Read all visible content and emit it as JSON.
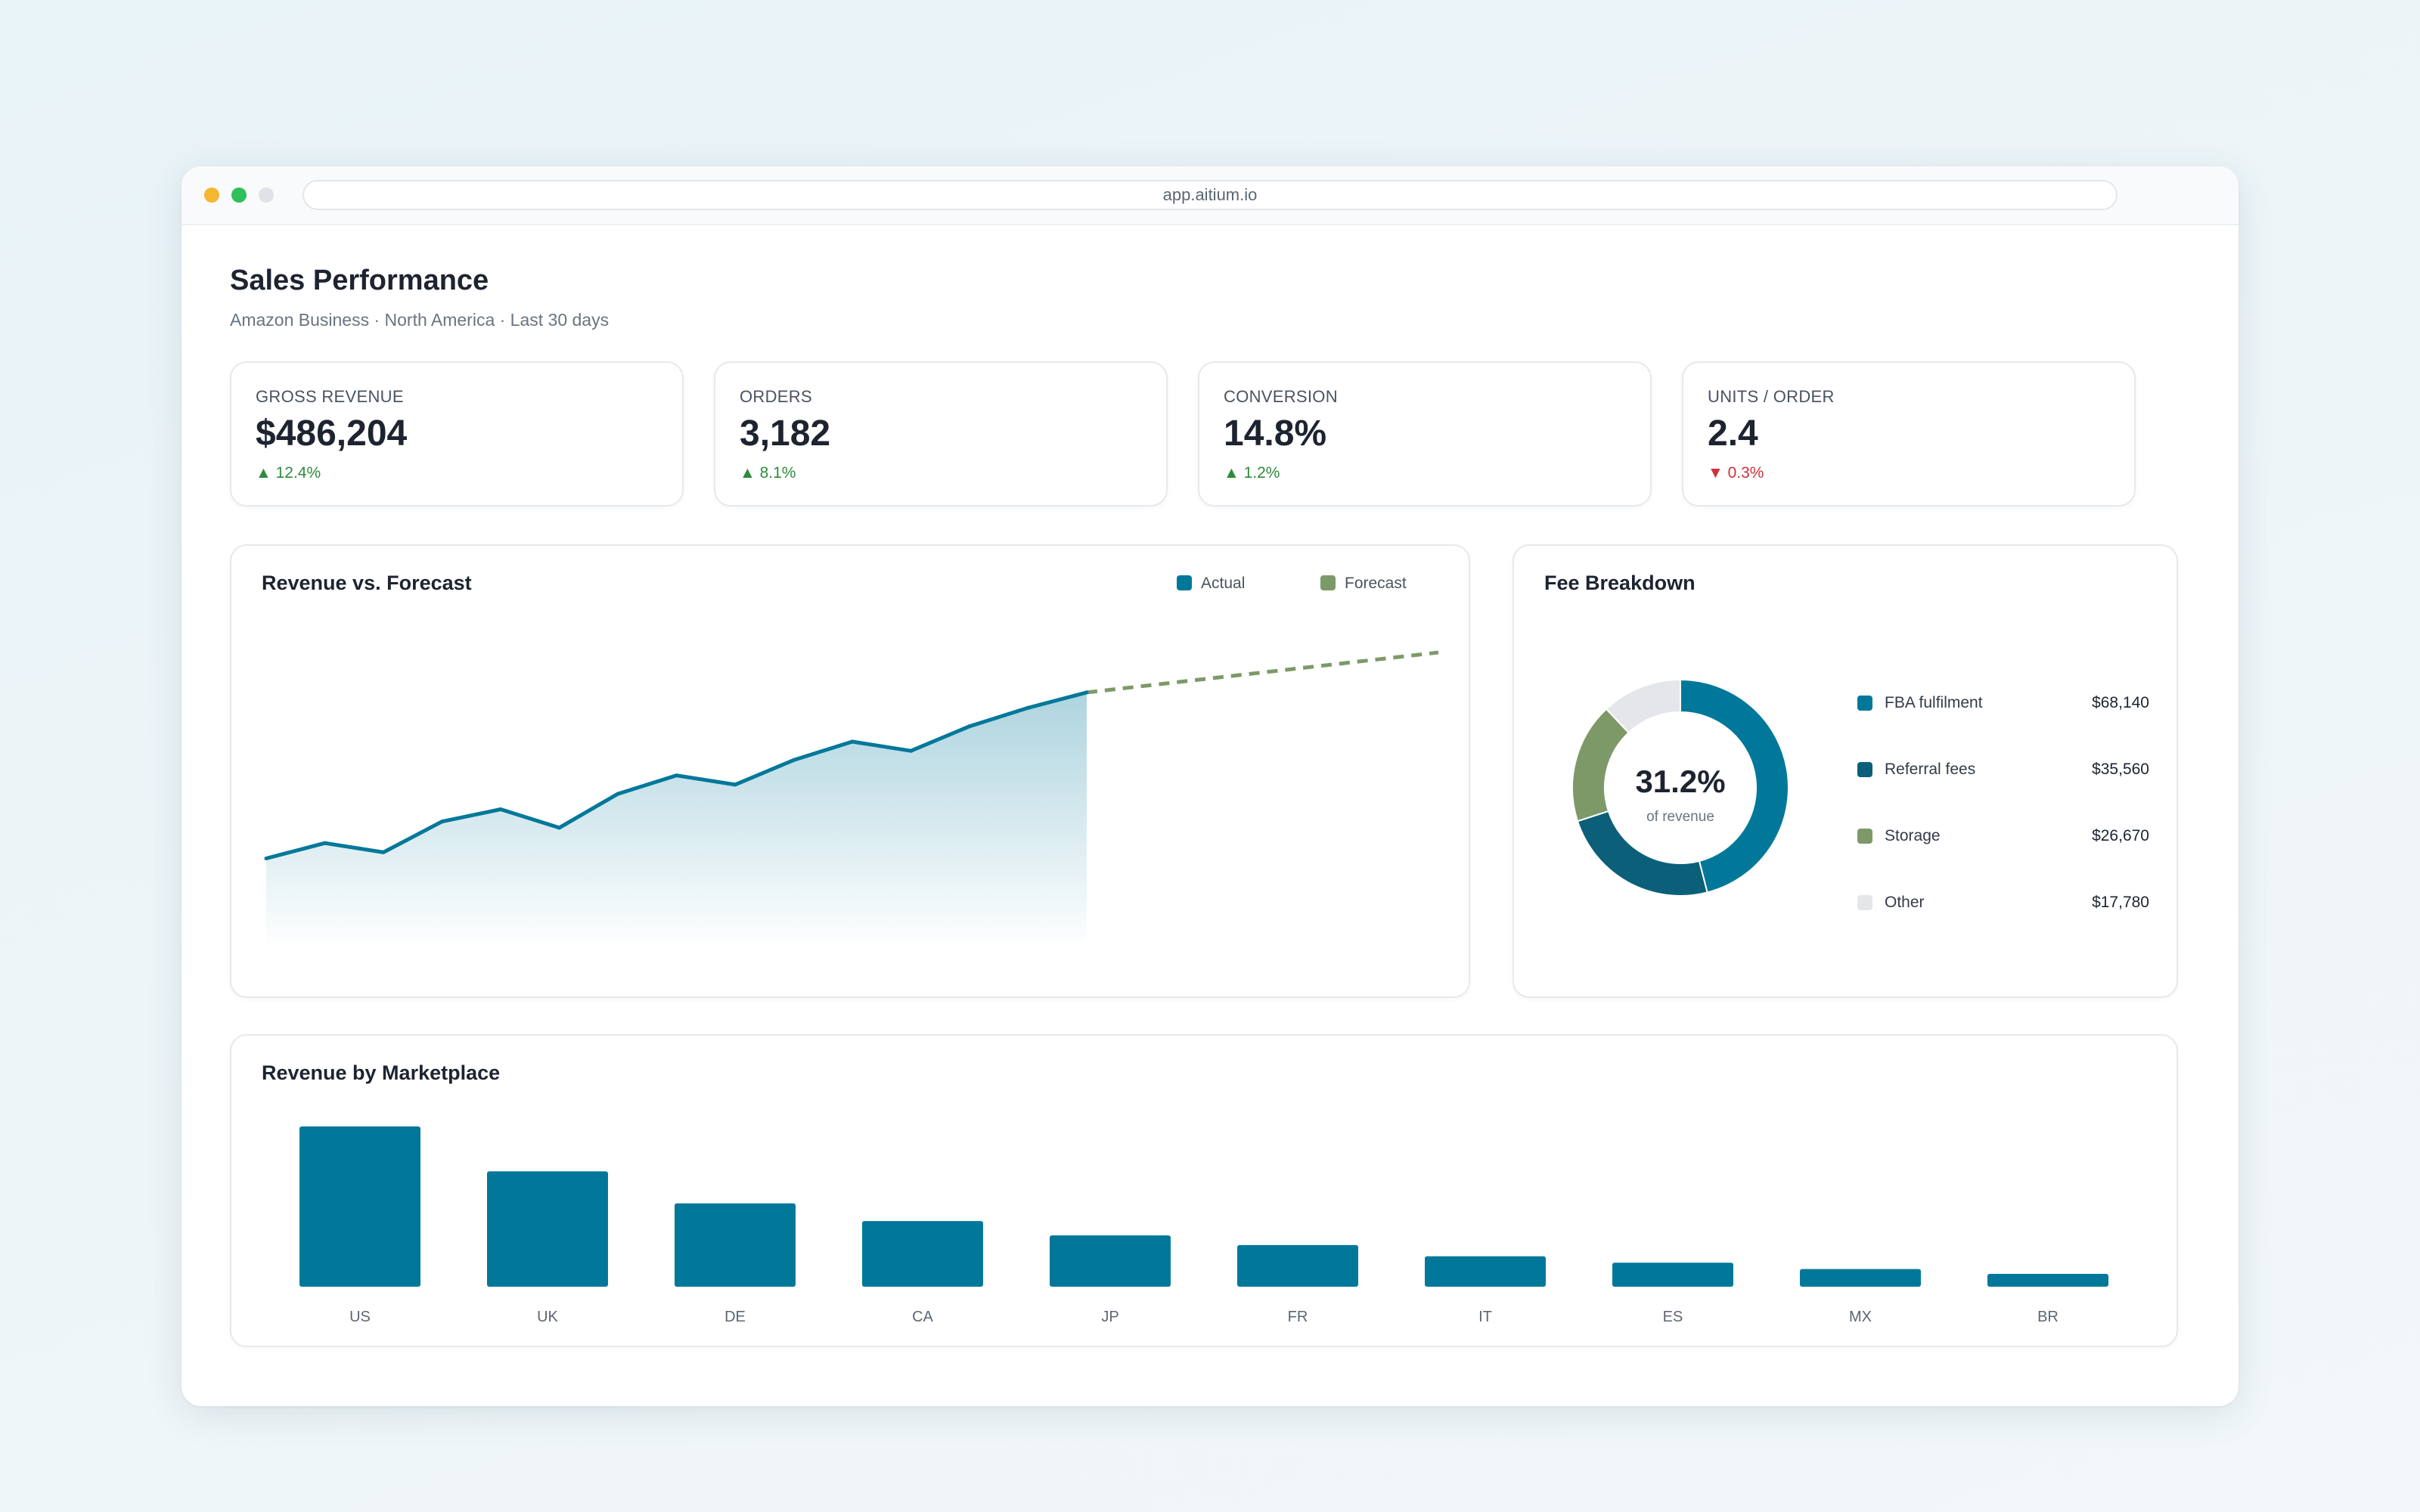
{
  "browser": {
    "url": "app.aitium.io"
  },
  "header": {
    "title": "Sales Performance",
    "subtitle": "Amazon Business · North America · Last 30 days"
  },
  "kpis": [
    {
      "label": "GROSS REVENUE",
      "value": "$486,204",
      "delta": "▲ 12.4%",
      "trend": "up"
    },
    {
      "label": "ORDERS",
      "value": "3,182",
      "delta": "▲ 8.1%",
      "trend": "up"
    },
    {
      "label": "CONVERSION",
      "value": "14.8%",
      "delta": "▲ 1.2%",
      "trend": "up"
    },
    {
      "label": "UNITS / ORDER",
      "value": "2.4",
      "delta": "▼ 0.3%",
      "trend": "down"
    }
  ],
  "colors": {
    "actual": "#01789a",
    "actual_dark": "#0b5f79",
    "forecast": "#7e9968",
    "other": "#e4e6e9",
    "up": "#2e8b3d",
    "down": "#d0313a"
  },
  "revenue_chart": {
    "title": "Revenue vs. Forecast",
    "legend": {
      "actual": "Actual",
      "forecast": "Forecast"
    }
  },
  "fee_breakdown": {
    "title": "Fee Breakdown",
    "center_value": "31.2%",
    "center_label": "of revenue",
    "items": [
      {
        "name": "FBA fulfilment",
        "amount": "$68,140"
      },
      {
        "name": "Referral fees",
        "amount": "$35,560"
      },
      {
        "name": "Storage",
        "amount": "$26,670"
      },
      {
        "name": "Other",
        "amount": "$17,780"
      }
    ]
  },
  "marketplace_chart": {
    "title": "Revenue by Marketplace"
  },
  "chart_data": [
    {
      "type": "area",
      "title": "Revenue vs. Forecast",
      "x": [
        1,
        2,
        3,
        4,
        5,
        6,
        7,
        8,
        9,
        10,
        11,
        12,
        13,
        14,
        15
      ],
      "series": [
        {
          "name": "Actual",
          "values": [
            37,
            42,
            39,
            49,
            53,
            47,
            58,
            64,
            61,
            69,
            75,
            72,
            80,
            86,
            91
          ]
        },
        {
          "name": "Forecast",
          "x": [
            15,
            21
          ],
          "values": [
            91,
            104
          ]
        }
      ],
      "ylim": [
        0,
        120
      ],
      "grid": false,
      "legend": "top-right"
    },
    {
      "type": "pie",
      "title": "Fee Breakdown",
      "categories": [
        "FBA fulfilment",
        "Referral fees",
        "Storage",
        "Other"
      ],
      "values": [
        68140,
        35560,
        26670,
        17780
      ]
    },
    {
      "type": "bar",
      "title": "Revenue by Marketplace",
      "categories": [
        "US",
        "UK",
        "DE",
        "CA",
        "JP",
        "FR",
        "IT",
        "ES",
        "MX",
        "BR"
      ],
      "values": [
        100,
        72,
        52,
        41,
        32,
        26,
        19,
        15,
        11,
        8
      ],
      "ylim": [
        0,
        100
      ],
      "grid": false
    }
  ]
}
